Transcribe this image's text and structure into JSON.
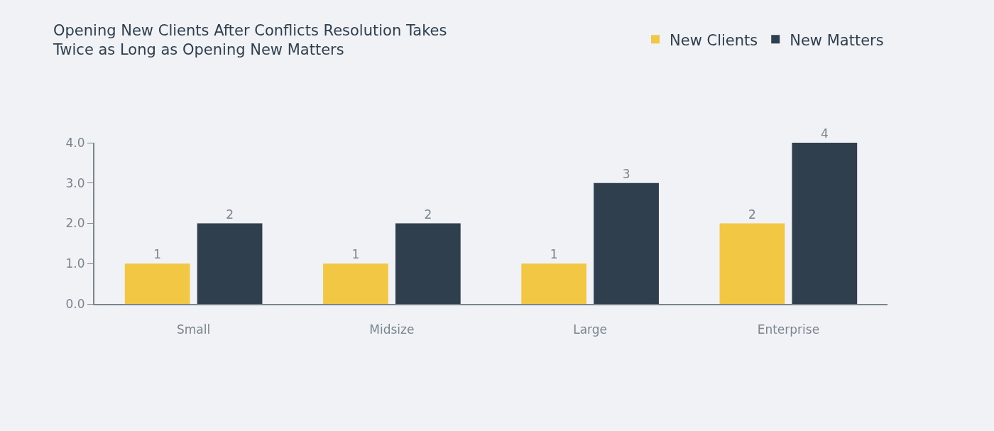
{
  "chart_data": {
    "type": "bar",
    "title": "Opening New Clients After Conflicts Resolution Takes\nTwice as Long as Opening New Matters",
    "categories": [
      "Small",
      "Midsize",
      "Large",
      "Enterprise"
    ],
    "series": [
      {
        "name": "New Clients",
        "color": "#f2c744",
        "values": [
          1,
          1,
          1,
          2
        ]
      },
      {
        "name": "New Matters",
        "color": "#2f3f4d",
        "values": [
          2,
          2,
          3,
          4
        ]
      }
    ],
    "ylim": [
      0,
      4
    ],
    "yticks": [
      {
        "value": 0,
        "label": "0.0"
      },
      {
        "value": 1,
        "label": "1.0"
      },
      {
        "value": 2,
        "label": "2.0"
      },
      {
        "value": 3,
        "label": "3.0"
      },
      {
        "value": 4,
        "label": "4.0"
      }
    ],
    "grid": false,
    "legend": "top right",
    "data_labels": true
  }
}
